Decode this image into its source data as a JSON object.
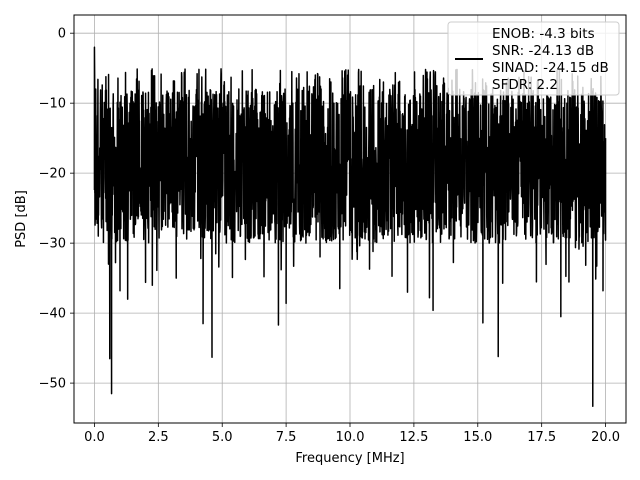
{
  "chart_data": {
    "type": "line",
    "xlabel": "Frequency [MHz]",
    "ylabel": "PSD [dB]",
    "xlim": [
      -0.8,
      20.8
    ],
    "ylim": [
      -55.7,
      2.6
    ],
    "xticks": [
      0.0,
      2.5,
      5.0,
      7.5,
      10.0,
      12.5,
      15.0,
      17.5,
      20.0
    ],
    "xtick_labels": [
      "0.0",
      "2.5",
      "5.0",
      "7.5",
      "10.0",
      "12.5",
      "15.0",
      "17.5",
      "20.0"
    ],
    "yticks": [
      0,
      -10,
      -20,
      -30,
      -40,
      -50
    ],
    "ytick_labels": [
      "0",
      "−10",
      "−20",
      "−30",
      "−40",
      "−50"
    ],
    "grid": true,
    "legend_position": "upper-right",
    "line_color": "#000000",
    "legend_entries": [
      "ENOB: -4.3 bits",
      "SNR: -24.13 dB",
      "SINAD: -24.15 dB",
      "SFDR: 2.2"
    ],
    "series": [
      {
        "x_range": [
          0.0,
          20.0
        ],
        "noise_band_db": [
          -30,
          -8
        ],
        "points": [
          [
            0.0,
            -2.0
          ],
          [
            0.02,
            -21.0
          ],
          [
            0.05,
            -8.0
          ],
          [
            0.1,
            -20.0
          ],
          [
            0.15,
            -29.0
          ],
          [
            0.25,
            -12.0
          ],
          [
            0.35,
            -24.0
          ],
          [
            0.55,
            -33.0
          ],
          [
            0.6,
            -46.5
          ],
          [
            0.67,
            -51.5
          ],
          [
            1.0,
            -36.8
          ],
          [
            1.3,
            -38.0
          ],
          [
            2.0,
            -35.6
          ],
          [
            3.2,
            -35.0
          ],
          [
            4.25,
            -41.5
          ],
          [
            4.6,
            -46.3
          ],
          [
            5.4,
            -34.9
          ],
          [
            7.2,
            -41.7
          ],
          [
            7.5,
            -38.6
          ],
          [
            9.6,
            -36.5
          ],
          [
            12.25,
            -37.0
          ],
          [
            13.25,
            -39.6
          ],
          [
            15.2,
            -41.4
          ],
          [
            15.8,
            -46.2
          ],
          [
            18.25,
            -40.5
          ],
          [
            19.5,
            -53.3
          ],
          [
            19.9,
            -36.8
          ],
          [
            20.0,
            -15.0
          ]
        ]
      }
    ]
  }
}
